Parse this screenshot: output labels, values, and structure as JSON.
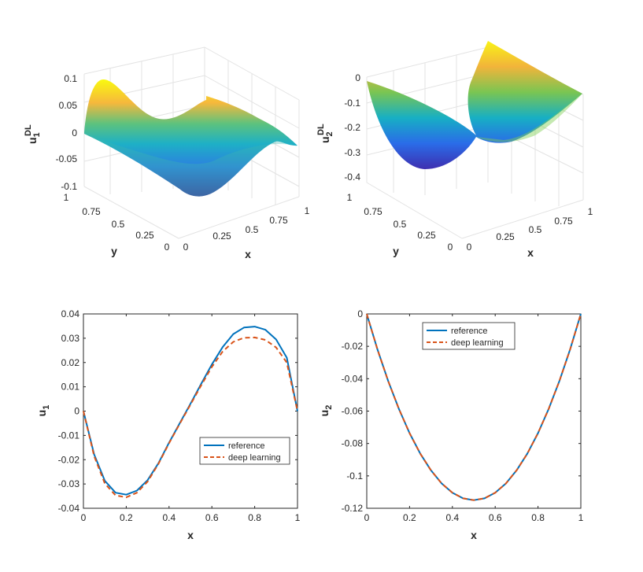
{
  "chart_data": [
    {
      "type": "surface",
      "zlabel_main": "u",
      "zlabel_sup": "DL",
      "zlabel_sub": "1",
      "xlabel": "x",
      "ylabel": "y",
      "xticks": [
        "0",
        "0.25",
        "0.5",
        "0.75",
        "1"
      ],
      "yticks": [
        "0",
        "0.25",
        "0.5",
        "0.75",
        "1"
      ],
      "zticks": [
        "-0.1",
        "-0.05",
        "0",
        "0.05",
        "0.1"
      ],
      "zlim": [
        -0.1,
        0.1
      ]
    },
    {
      "type": "surface",
      "zlabel_main": "u",
      "zlabel_sup": "DL",
      "zlabel_sub": "2",
      "xlabel": "x",
      "ylabel": "y",
      "xticks": [
        "0",
        "0.25",
        "0.5",
        "0.75",
        "1"
      ],
      "yticks": [
        "0",
        "0.25",
        "0.5",
        "0.75",
        "1"
      ],
      "zticks": [
        "-0.4",
        "-0.3",
        "-0.2",
        "-0.1",
        "0"
      ],
      "zlim": [
        -0.42,
        0
      ]
    },
    {
      "type": "line",
      "xlabel": "x",
      "ylabel_main": "u",
      "ylabel_sub": "1",
      "xlim": [
        0,
        1
      ],
      "ylim": [
        -0.04,
        0.04
      ],
      "xticks": [
        "0",
        "0.2",
        "0.4",
        "0.6",
        "0.8",
        "1"
      ],
      "yticks": [
        "-0.04",
        "-0.03",
        "-0.02",
        "-0.01",
        "0",
        "0.01",
        "0.02",
        "0.03",
        "0.04"
      ],
      "legend_position": "lower-right",
      "x": [
        0,
        0.05,
        0.1,
        0.15,
        0.2,
        0.25,
        0.3,
        0.35,
        0.4,
        0.45,
        0.5,
        0.55,
        0.6,
        0.65,
        0.7,
        0.75,
        0.8,
        0.85,
        0.9,
        0.95,
        1
      ],
      "series": [
        {
          "name": "reference",
          "color": "#0072BD",
          "dash": "solid",
          "values": [
            0,
            -0.0178,
            -0.0287,
            -0.0336,
            -0.0344,
            -0.0327,
            -0.0284,
            -0.0215,
            -0.013,
            -0.005,
            0.003,
            0.0112,
            0.0192,
            0.0263,
            0.0317,
            0.0344,
            0.0348,
            0.0335,
            0.0295,
            0.022,
            0
          ]
        },
        {
          "name": "deep learning",
          "color": "#D95319",
          "dash": "dashed",
          "values": [
            0,
            -0.0185,
            -0.0298,
            -0.0347,
            -0.0355,
            -0.0336,
            -0.029,
            -0.0218,
            -0.0132,
            -0.0052,
            0.0027,
            0.0106,
            0.0182,
            0.0245,
            0.0285,
            0.0302,
            0.0303,
            0.0293,
            0.0262,
            0.02,
            0
          ]
        }
      ]
    },
    {
      "type": "line",
      "xlabel": "x",
      "ylabel_main": "u",
      "ylabel_sub": "2",
      "xlim": [
        0,
        1
      ],
      "ylim": [
        -0.12,
        0
      ],
      "xticks": [
        "0",
        "0.2",
        "0.4",
        "0.6",
        "0.8",
        "1"
      ],
      "yticks": [
        "-0.12",
        "-0.1",
        "-0.08",
        "-0.06",
        "-0.04",
        "-0.02",
        "0"
      ],
      "legend_position": "top-center",
      "x": [
        0,
        0.05,
        0.1,
        0.15,
        0.2,
        0.25,
        0.3,
        0.35,
        0.4,
        0.45,
        0.5,
        0.55,
        0.6,
        0.65,
        0.7,
        0.75,
        0.8,
        0.85,
        0.9,
        0.95,
        1
      ],
      "series": [
        {
          "name": "reference",
          "color": "#0072BD",
          "dash": "solid",
          "values": [
            0,
            -0.0219,
            -0.0414,
            -0.0586,
            -0.0736,
            -0.0863,
            -0.0966,
            -0.1047,
            -0.1104,
            -0.1139,
            -0.115,
            -0.1139,
            -0.1104,
            -0.1047,
            -0.0966,
            -0.0863,
            -0.0736,
            -0.0586,
            -0.0414,
            -0.0219,
            0
          ]
        },
        {
          "name": "deep learning",
          "color": "#D95319",
          "dash": "dashed",
          "values": [
            0,
            -0.0219,
            -0.0414,
            -0.0586,
            -0.0736,
            -0.0863,
            -0.0966,
            -0.1047,
            -0.1104,
            -0.1139,
            -0.115,
            -0.1139,
            -0.1104,
            -0.1047,
            -0.0966,
            -0.0863,
            -0.0736,
            -0.0586,
            -0.0414,
            -0.0219,
            0
          ]
        }
      ]
    }
  ]
}
